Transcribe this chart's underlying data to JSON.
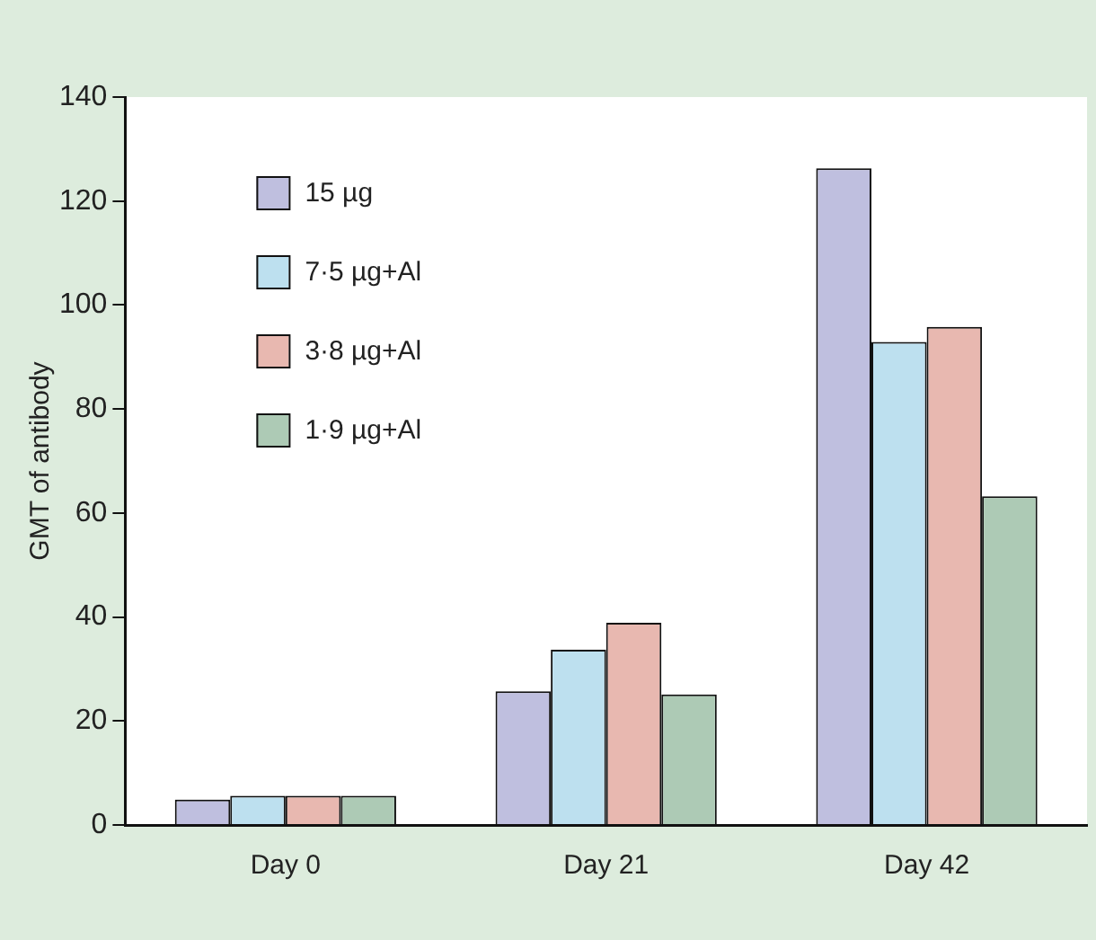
{
  "chart_data": {
    "type": "bar",
    "ylabel": "GMT of antibody",
    "categories": [
      "Day 0",
      "Day 21",
      "Day 42"
    ],
    "series": [
      {
        "name": "15 µg",
        "color": "#bfbfdf",
        "values": [
          4.9,
          25.7,
          126.3
        ]
      },
      {
        "name": "7·5 µg+Al",
        "color": "#bde0ef",
        "values": [
          5.6,
          33.7,
          92.9
        ]
      },
      {
        "name": "3·8 µg+Al",
        "color": "#e8b8b0",
        "values": [
          5.6,
          38.9,
          95.8
        ]
      },
      {
        "name": "1·9 µg+Al",
        "color": "#adcab5",
        "values": [
          5.6,
          25.1,
          63.2
        ]
      }
    ],
    "ylim": [
      0,
      140
    ],
    "yticks": [
      0,
      20,
      40,
      60,
      80,
      100,
      120,
      140
    ],
    "grid": false,
    "legend": "top left"
  }
}
